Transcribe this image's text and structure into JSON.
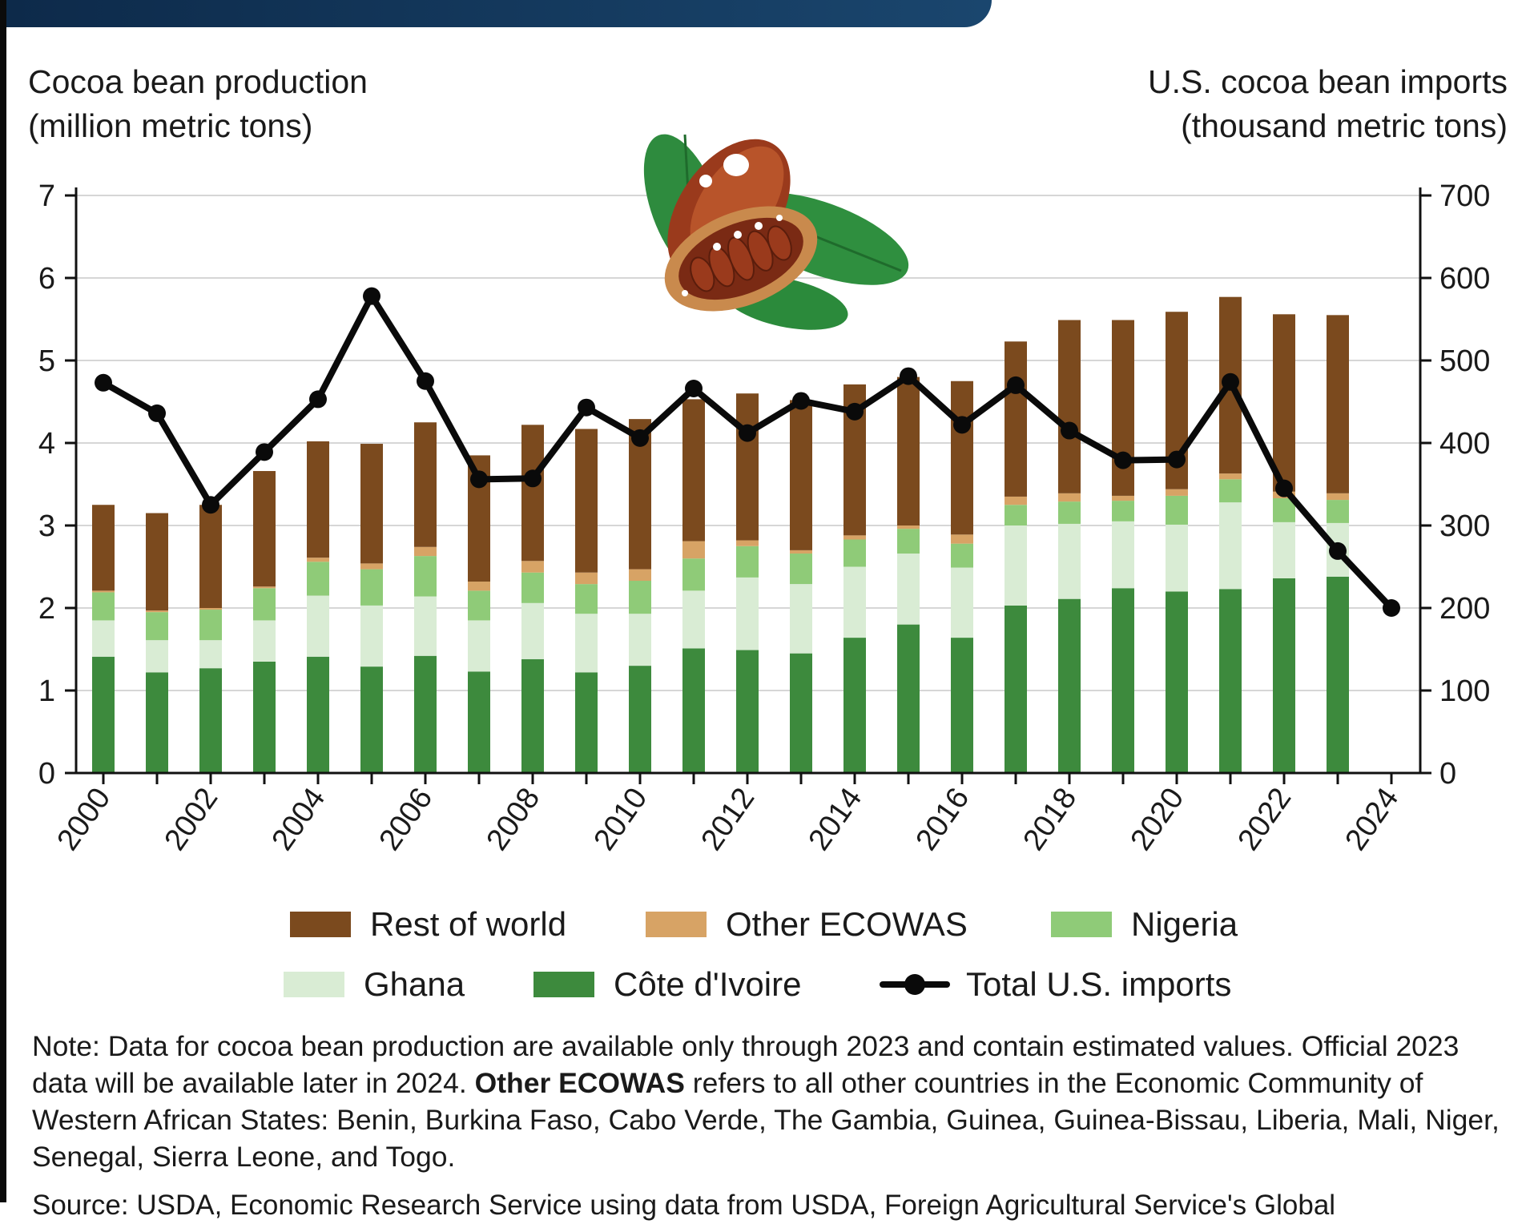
{
  "chart_data": {
    "type": "bar",
    "left_axis_title_line1": "Cocoa bean production",
    "left_axis_title_line2": "(million metric tons)",
    "right_axis_title_line1": "U.S. cocoa bean imports",
    "right_axis_title_line2": "(thousand metric tons)",
    "y_left_lim": [
      0,
      7
    ],
    "y_left_ticks": [
      "0",
      "1",
      "2",
      "3",
      "4",
      "5",
      "6",
      "7"
    ],
    "y_right_lim": [
      0,
      700
    ],
    "y_right_ticks": [
      "0",
      "100",
      "200",
      "300",
      "400",
      "500",
      "600",
      "700"
    ],
    "x_ticks": [
      "2000",
      "2002",
      "2004",
      "2006",
      "2008",
      "2010",
      "2012",
      "2014",
      "2016",
      "2018",
      "2020",
      "2022",
      "2024"
    ],
    "categories": [
      "2000",
      "2001",
      "2002",
      "2003",
      "2004",
      "2005",
      "2006",
      "2007",
      "2008",
      "2009",
      "2010",
      "2011",
      "2012",
      "2013",
      "2014",
      "2015",
      "2016",
      "2017",
      "2018",
      "2019",
      "2020",
      "2021",
      "2022",
      "2023",
      "2024"
    ],
    "grid": true,
    "legend_placement": "bottom",
    "series": [
      {
        "name": "Côte d'Ivoire",
        "color": "#3d8a3d",
        "kind": "stacked-bar",
        "values": [
          1.41,
          1.22,
          1.27,
          1.35,
          1.41,
          1.29,
          1.42,
          1.23,
          1.38,
          1.22,
          1.3,
          1.51,
          1.49,
          1.45,
          1.64,
          1.8,
          1.64,
          2.03,
          2.11,
          2.24,
          2.2,
          2.23,
          2.36,
          2.38,
          null
        ]
      },
      {
        "name": "Ghana",
        "color": "#d9ecd4",
        "kind": "stacked-bar",
        "values": [
          0.44,
          0.39,
          0.34,
          0.5,
          0.74,
          0.74,
          0.72,
          0.62,
          0.68,
          0.71,
          0.63,
          0.7,
          0.88,
          0.84,
          0.86,
          0.86,
          0.85,
          0.97,
          0.91,
          0.81,
          0.81,
          1.05,
          0.68,
          0.65,
          null
        ]
      },
      {
        "name": "Nigeria",
        "color": "#8fcb78",
        "kind": "stacked-bar",
        "values": [
          0.34,
          0.34,
          0.37,
          0.39,
          0.41,
          0.44,
          0.49,
          0.36,
          0.37,
          0.36,
          0.4,
          0.39,
          0.38,
          0.37,
          0.33,
          0.3,
          0.29,
          0.25,
          0.27,
          0.25,
          0.35,
          0.28,
          0.29,
          0.28,
          null
        ]
      },
      {
        "name": "Other ECOWAS",
        "color": "#d7a365",
        "kind": "stacked-bar",
        "values": [
          0.02,
          0.02,
          0.02,
          0.02,
          0.05,
          0.07,
          0.11,
          0.11,
          0.14,
          0.14,
          0.14,
          0.21,
          0.07,
          0.04,
          0.05,
          0.04,
          0.11,
          0.1,
          0.1,
          0.06,
          0.08,
          0.07,
          0.08,
          0.08,
          null
        ]
      },
      {
        "name": "Rest of world",
        "color": "#7b4a1e",
        "kind": "stacked-bar",
        "values": [
          1.04,
          1.18,
          1.25,
          1.4,
          1.41,
          1.45,
          1.51,
          1.53,
          1.65,
          1.74,
          1.82,
          1.72,
          1.78,
          1.82,
          1.83,
          1.8,
          1.86,
          1.88,
          2.1,
          2.13,
          2.15,
          2.14,
          2.15,
          2.16,
          null
        ]
      },
      {
        "name": "Total U.S. imports",
        "color": "#0a0a0a",
        "kind": "line",
        "axis": "right",
        "values": [
          473,
          436,
          325,
          389,
          453,
          578,
          475,
          356,
          357,
          443,
          406,
          466,
          412,
          451,
          438,
          481,
          422,
          470,
          415,
          379,
          380,
          474,
          345,
          269,
          200
        ]
      }
    ]
  },
  "legend": {
    "rest_of_world": "Rest of world",
    "other_ecowas": "Other ECOWAS",
    "nigeria": "Nigeria",
    "ghana": "Ghana",
    "cote_divoire": "Côte d'Ivoire",
    "total_us_imports": "Total U.S. imports"
  },
  "note": {
    "part1": "Note: Data for cocoa bean production are available only through 2023 and contain estimated values. Official 2023 data will be available later in 2024. ",
    "bold": "Other ECOWAS",
    "part2": " refers to all other countries in the Economic Community of Western African States: Benin, Burkina Faso, Cabo Verde, The Gambia, Guinea, Guinea-Bissau, Liberia, Mali, Niger, Senegal, Sierra Leone, and Togo."
  },
  "source": "Source: USDA, Economic Research Service using data from USDA, Foreign Agricultural Service's Global"
}
